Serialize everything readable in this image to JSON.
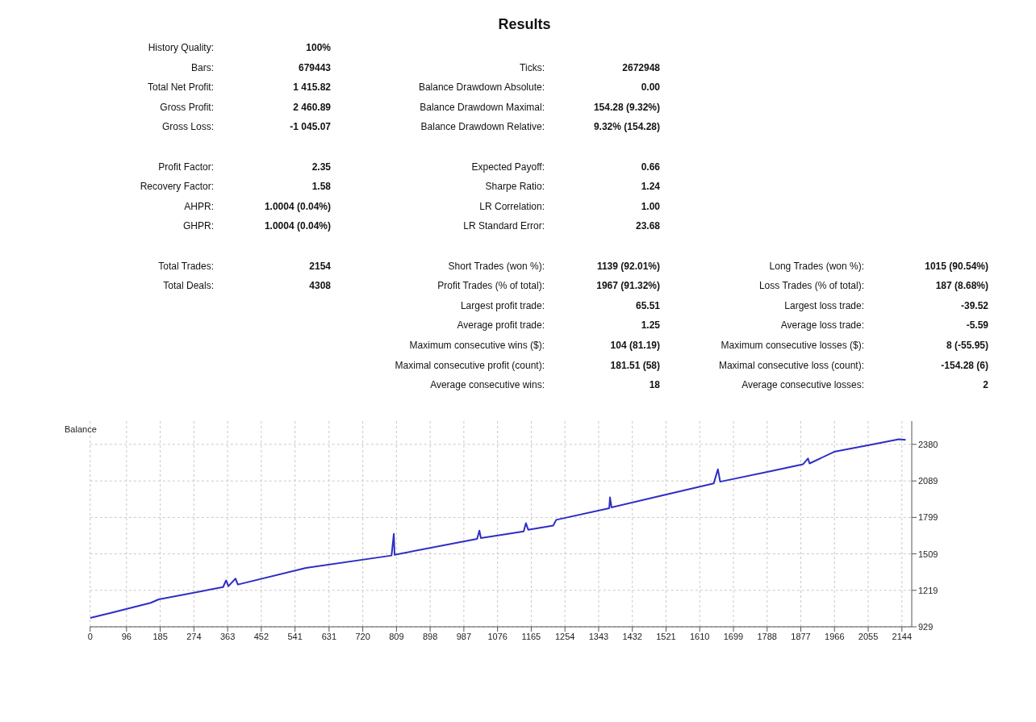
{
  "chart_data": [
    {
      "type": "other",
      "title": "Results",
      "annotations": [
        "History Quality:",
        "100%",
        "Bars:",
        "679443",
        "Ticks:",
        "2672948",
        "Total Net Profit:",
        "1 415.82",
        "Balance Drawdown Absolute:",
        "0.00",
        "Gross Profit:",
        "2 460.89",
        "Balance Drawdown Maximal:",
        "154.28 (9.32%)",
        "Gross Loss:",
        "-1 045.07",
        "Balance Drawdown Relative:",
        "9.32% (154.28)",
        "Profit Factor:",
        "2.35",
        "Expected Payoff:",
        "0.66",
        "Recovery Factor:",
        "1.58",
        "Sharpe Ratio:",
        "1.24",
        "AHPR:",
        "1.0004 (0.04%)",
        "LR Correlation:",
        "1.00",
        "GHPR:",
        "1.0004 (0.04%)",
        "LR Standard Error:",
        "23.68",
        "Total Trades:",
        "2154",
        "Short Trades (won %):",
        "1139 (92.01%)",
        "Long Trades (won %):",
        "1015 (90.54%)",
        "Total Deals:",
        "4308",
        "Profit Trades (% of total):",
        "1967 (91.32%)",
        "Loss Trades (% of total):",
        "187 (8.68%)",
        "Largest profit trade:",
        "65.51",
        "Largest loss trade:",
        "-39.52",
        "Average profit trade:",
        "1.25",
        "Average loss trade:",
        "-5.59",
        "Maximum consecutive wins ($):",
        "104 (81.19)",
        "Maximum consecutive losses ($):",
        "8 (-55.95)",
        "Maximal consecutive profit (count):",
        "181.51 (58)",
        "Maximal consecutive loss (count):",
        "-154.28 (6)",
        "Average consecutive wins:",
        "18",
        "Average consecutive losses:",
        "2"
      ]
    },
    {
      "type": "line",
      "legend": "top left",
      "grid": true,
      "line_style": "solid",
      "marker": "none",
      "xlim": [
        0,
        2170
      ],
      "xticks": [
        0,
        96,
        185,
        274,
        363,
        452,
        541,
        631,
        720,
        809,
        898,
        987,
        1076,
        1165,
        1254,
        1343,
        1432,
        1521,
        1610,
        1699,
        1788,
        1877,
        1966,
        2055,
        2144
      ],
      "ylim": [
        929,
        2565
      ],
      "yticks": [
        929,
        1219,
        1509,
        1799,
        2089,
        2380
      ],
      "series": [
        {
          "name": "Balance",
          "color": "#2e2ec4",
          "x": [
            0,
            57,
            160,
            181,
            351,
            359,
            365,
            384,
            390,
            570,
            796,
            802,
            804,
            1022,
            1028,
            1032,
            1145,
            1151,
            1157,
            1223,
            1231,
            1371,
            1373,
            1377,
            1508,
            1647,
            1658,
            1664,
            1801,
            1883,
            1896,
            1900,
            1965,
            2068,
            2136,
            2154
          ],
          "values": [
            1000,
            1041,
            1120,
            1147,
            1245,
            1298,
            1252,
            1312,
            1265,
            1397,
            1496,
            1668,
            1502,
            1628,
            1694,
            1635,
            1687,
            1753,
            1701,
            1734,
            1780,
            1872,
            1958,
            1879,
            1971,
            2070,
            2182,
            2083,
            2169,
            2222,
            2268,
            2228,
            2321,
            2380,
            2420,
            2416
          ]
        }
      ]
    }
  ]
}
